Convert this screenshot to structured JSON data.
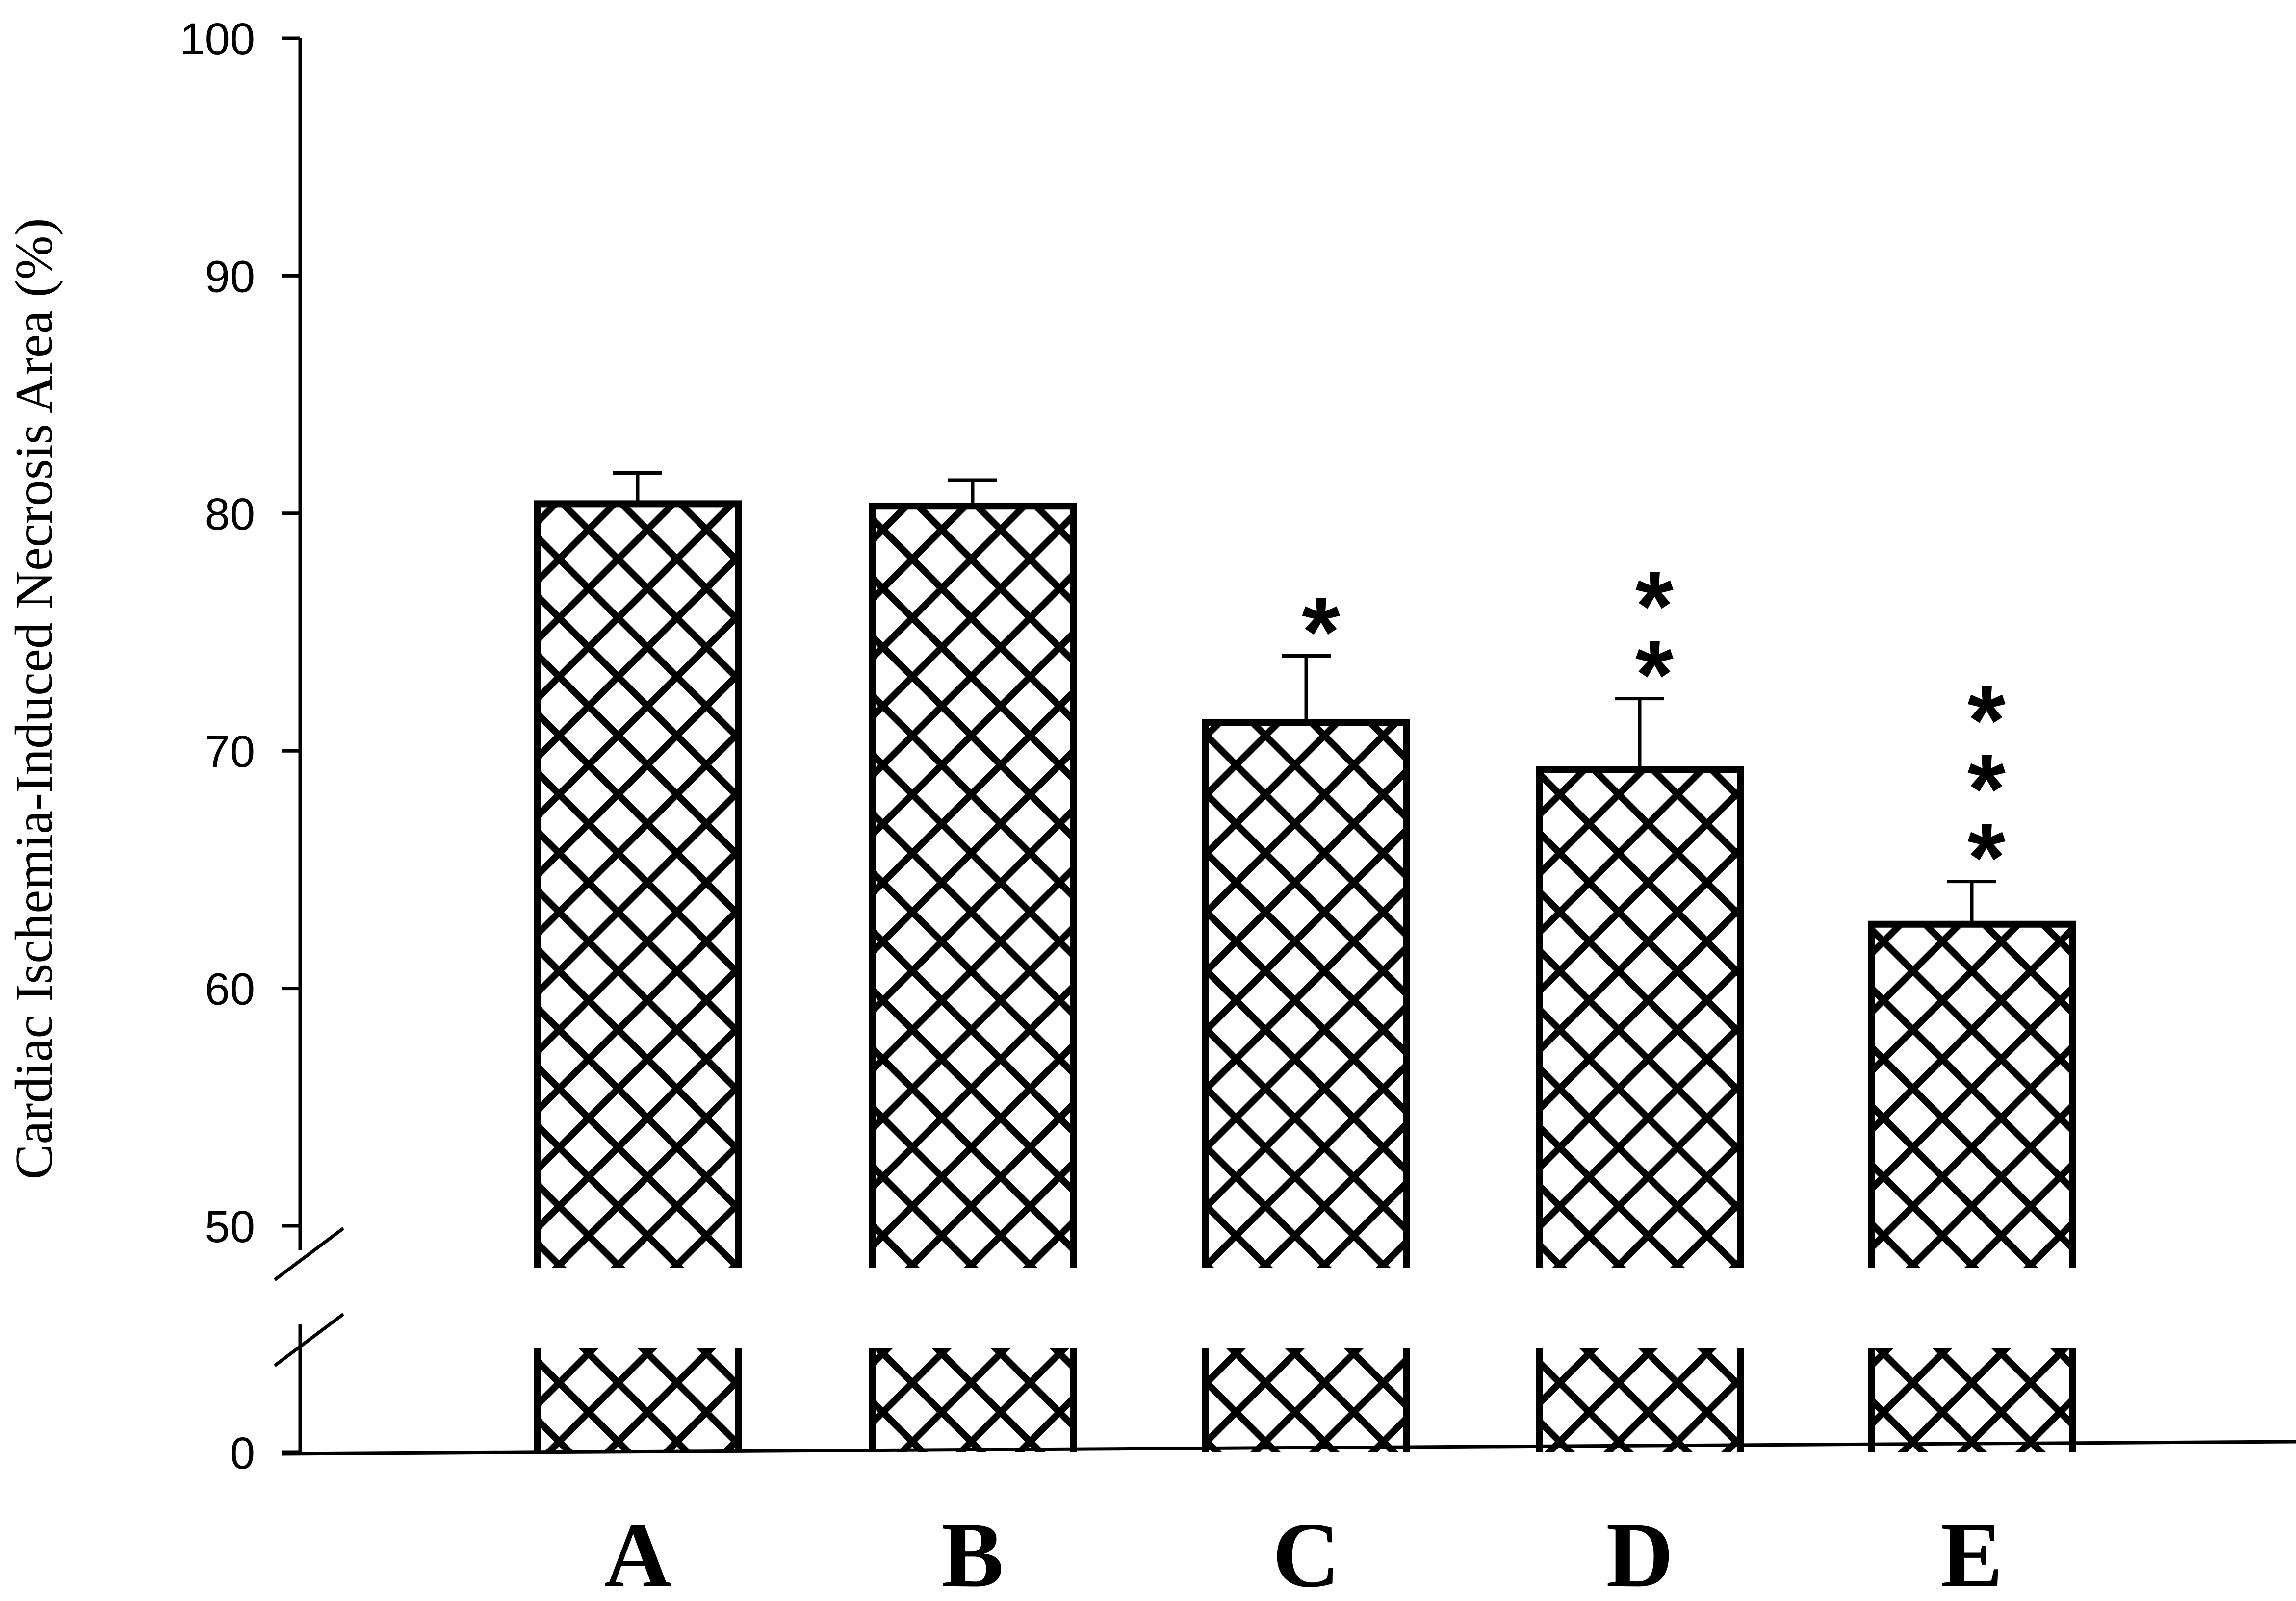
{
  "chart_data": {
    "type": "bar",
    "ylabel": "Cardiac Ischemia-Induced Necrosis Area (%)",
    "xlabel": "",
    "categories": [
      "A",
      "B",
      "C",
      "D",
      "E"
    ],
    "values": [
      80.4,
      80.3,
      71.2,
      69.2,
      62.7
    ],
    "errors": [
      1.3,
      1.1,
      2.8,
      3.0,
      1.8
    ],
    "significance": [
      "",
      "",
      "*",
      "**",
      "***"
    ],
    "ylim": [
      0,
      100
    ],
    "axis_break": [
      0,
      48
    ],
    "yticks": [
      "0",
      "50",
      "60",
      "70",
      "80",
      "90",
      "100"
    ],
    "bar_pattern": "cross-hatch",
    "grid": false,
    "legend": "none"
  }
}
